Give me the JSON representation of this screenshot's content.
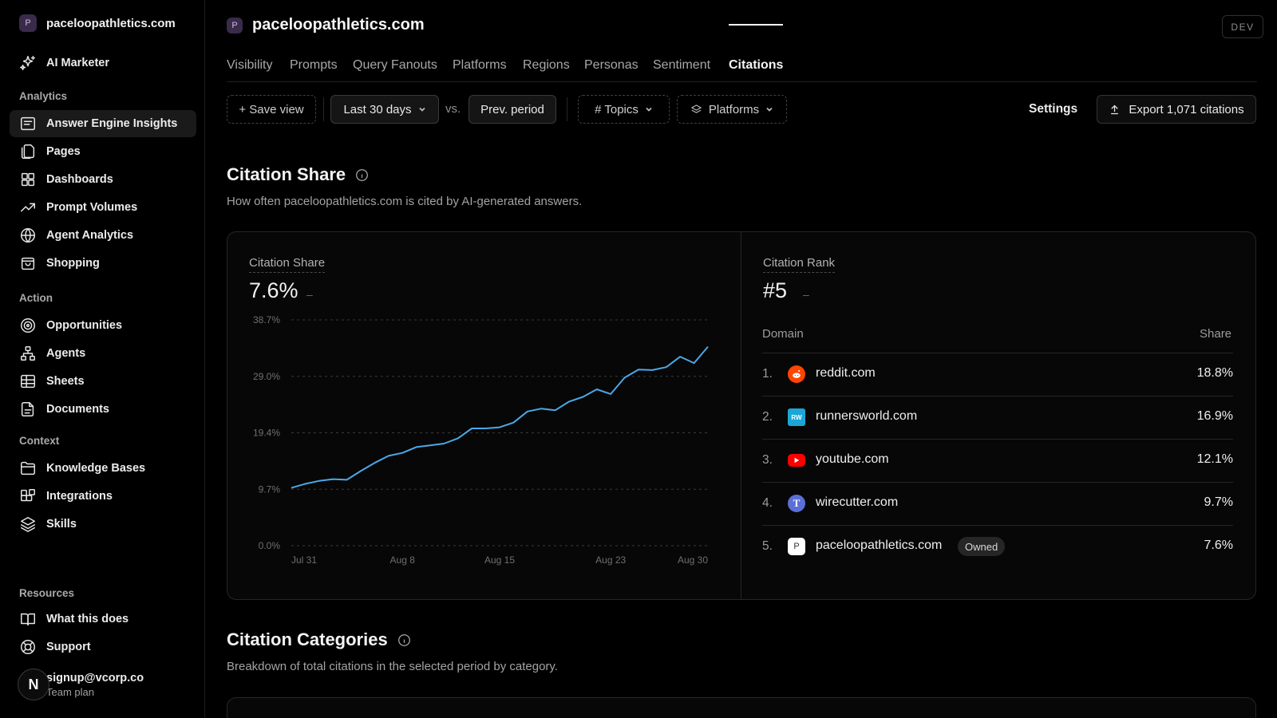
{
  "workspace": {
    "badge": "P",
    "name": "paceloopathletics.com"
  },
  "sidebar": {
    "top_item": {
      "label": "AI Marketer",
      "icon": "sparkles-icon"
    },
    "sections": {
      "analytics": "Analytics",
      "action": "Action",
      "context": "Context",
      "resources": "Resources"
    },
    "items": [
      {
        "label": "Answer Engine Insights",
        "icon": "message-square-icon",
        "active": true
      },
      {
        "label": "Pages",
        "icon": "files-icon"
      },
      {
        "label": "Dashboards",
        "icon": "grid-icon"
      },
      {
        "label": "Prompt Volumes",
        "icon": "trending-up-icon"
      },
      {
        "label": "Agent Analytics",
        "icon": "globe-icon"
      },
      {
        "label": "Shopping",
        "icon": "shopping-bag-icon"
      },
      {
        "label": "Opportunities",
        "icon": "target-icon"
      },
      {
        "label": "Agents",
        "icon": "network-icon"
      },
      {
        "label": "Sheets",
        "icon": "table-icon"
      },
      {
        "label": "Documents",
        "icon": "document-icon"
      },
      {
        "label": "Knowledge Bases",
        "icon": "folder-icon"
      },
      {
        "label": "Integrations",
        "icon": "blocks-icon"
      },
      {
        "label": "Skills",
        "icon": "layers-icon"
      },
      {
        "label": "What this does",
        "icon": "book-open-icon"
      },
      {
        "label": "Support",
        "icon": "life-buoy-icon"
      }
    ],
    "user": {
      "avatar": "N",
      "email": "signup@vcorp.co",
      "plan": "Team plan"
    }
  },
  "header": {
    "badge": "P",
    "title": "paceloopathletics.com",
    "env": "DEV"
  },
  "tabs": [
    "Visibility",
    "Prompts",
    "Query Fanouts",
    "Platforms",
    "Regions",
    "Personas",
    "Sentiment",
    "Citations"
  ],
  "active_tab": "Citations",
  "toolbar": {
    "save_view": "+ Save view",
    "range": "Last 30 days",
    "vs": "vs.",
    "compare": "Prev. period",
    "topics": "# Topics",
    "platforms": "Platforms",
    "settings": "Settings",
    "export": "Export 1,071 citations"
  },
  "citation_share_section": {
    "title": "Citation Share",
    "description": "How often paceloopathletics.com is cited by AI-generated answers."
  },
  "share_card": {
    "label": "Citation Share",
    "value": "7.6%",
    "delta": "–"
  },
  "rank_card": {
    "label": "Citation Rank",
    "value": "#5",
    "delta": "–",
    "col_domain": "Domain",
    "col_share": "Share",
    "rows": [
      {
        "rank": "1.",
        "domain": "reddit.com",
        "share": "18.8%",
        "icon": "reddit-icon",
        "color": "#ff4500"
      },
      {
        "rank": "2.",
        "domain": "runnersworld.com",
        "share": "16.9%",
        "icon": "runnersworld-icon",
        "color": "#1aa7d6"
      },
      {
        "rank": "3.",
        "domain": "youtube.com",
        "share": "12.1%",
        "icon": "youtube-icon",
        "color": "#ff0000"
      },
      {
        "rank": "4.",
        "domain": "wirecutter.com",
        "share": "9.7%",
        "icon": "wirecutter-icon",
        "color": "#5b6fd8"
      },
      {
        "rank": "5.",
        "domain": "paceloopathletics.com",
        "share": "7.6%",
        "icon": "paceloop-icon",
        "color": "#ffffff",
        "badge": "Owned"
      }
    ]
  },
  "chart_data": {
    "type": "line",
    "title": "",
    "xlabel": "",
    "ylabel": "",
    "ylim": [
      0,
      38.7
    ],
    "yticks": [
      "0.0%",
      "9.7%",
      "19.4%",
      "29.0%",
      "38.7%"
    ],
    "xticks": [
      "Jul 31",
      "Aug 8",
      "Aug 15",
      "Aug 23",
      "Aug 30"
    ],
    "grid": true,
    "series": [
      {
        "color": "#4aa8e8",
        "x": [
          "Jul 31",
          "Aug 1",
          "Aug 2",
          "Aug 3",
          "Aug 4",
          "Aug 5",
          "Aug 6",
          "Aug 7",
          "Aug 8",
          "Aug 9",
          "Aug 10",
          "Aug 11",
          "Aug 12",
          "Aug 13",
          "Aug 14",
          "Aug 15",
          "Aug 16",
          "Aug 17",
          "Aug 18",
          "Aug 19",
          "Aug 20",
          "Aug 21",
          "Aug 22",
          "Aug 23",
          "Aug 24",
          "Aug 25",
          "Aug 26",
          "Aug 27",
          "Aug 28",
          "Aug 29",
          "Aug 30"
        ],
        "values": [
          9.9,
          10.6,
          11.1,
          11.4,
          11.3,
          12.8,
          14.2,
          15.4,
          15.9,
          16.9,
          17.2,
          17.5,
          18.4,
          20.1,
          20.1,
          20.3,
          21.1,
          23.0,
          23.5,
          23.2,
          24.7,
          25.5,
          26.8,
          26.0,
          28.8,
          30.2,
          30.1,
          30.6,
          32.4,
          31.3,
          34.1
        ]
      }
    ]
  },
  "categories_section": {
    "title": "Citation Categories",
    "description": "Breakdown of total citations in the selected period by category."
  }
}
